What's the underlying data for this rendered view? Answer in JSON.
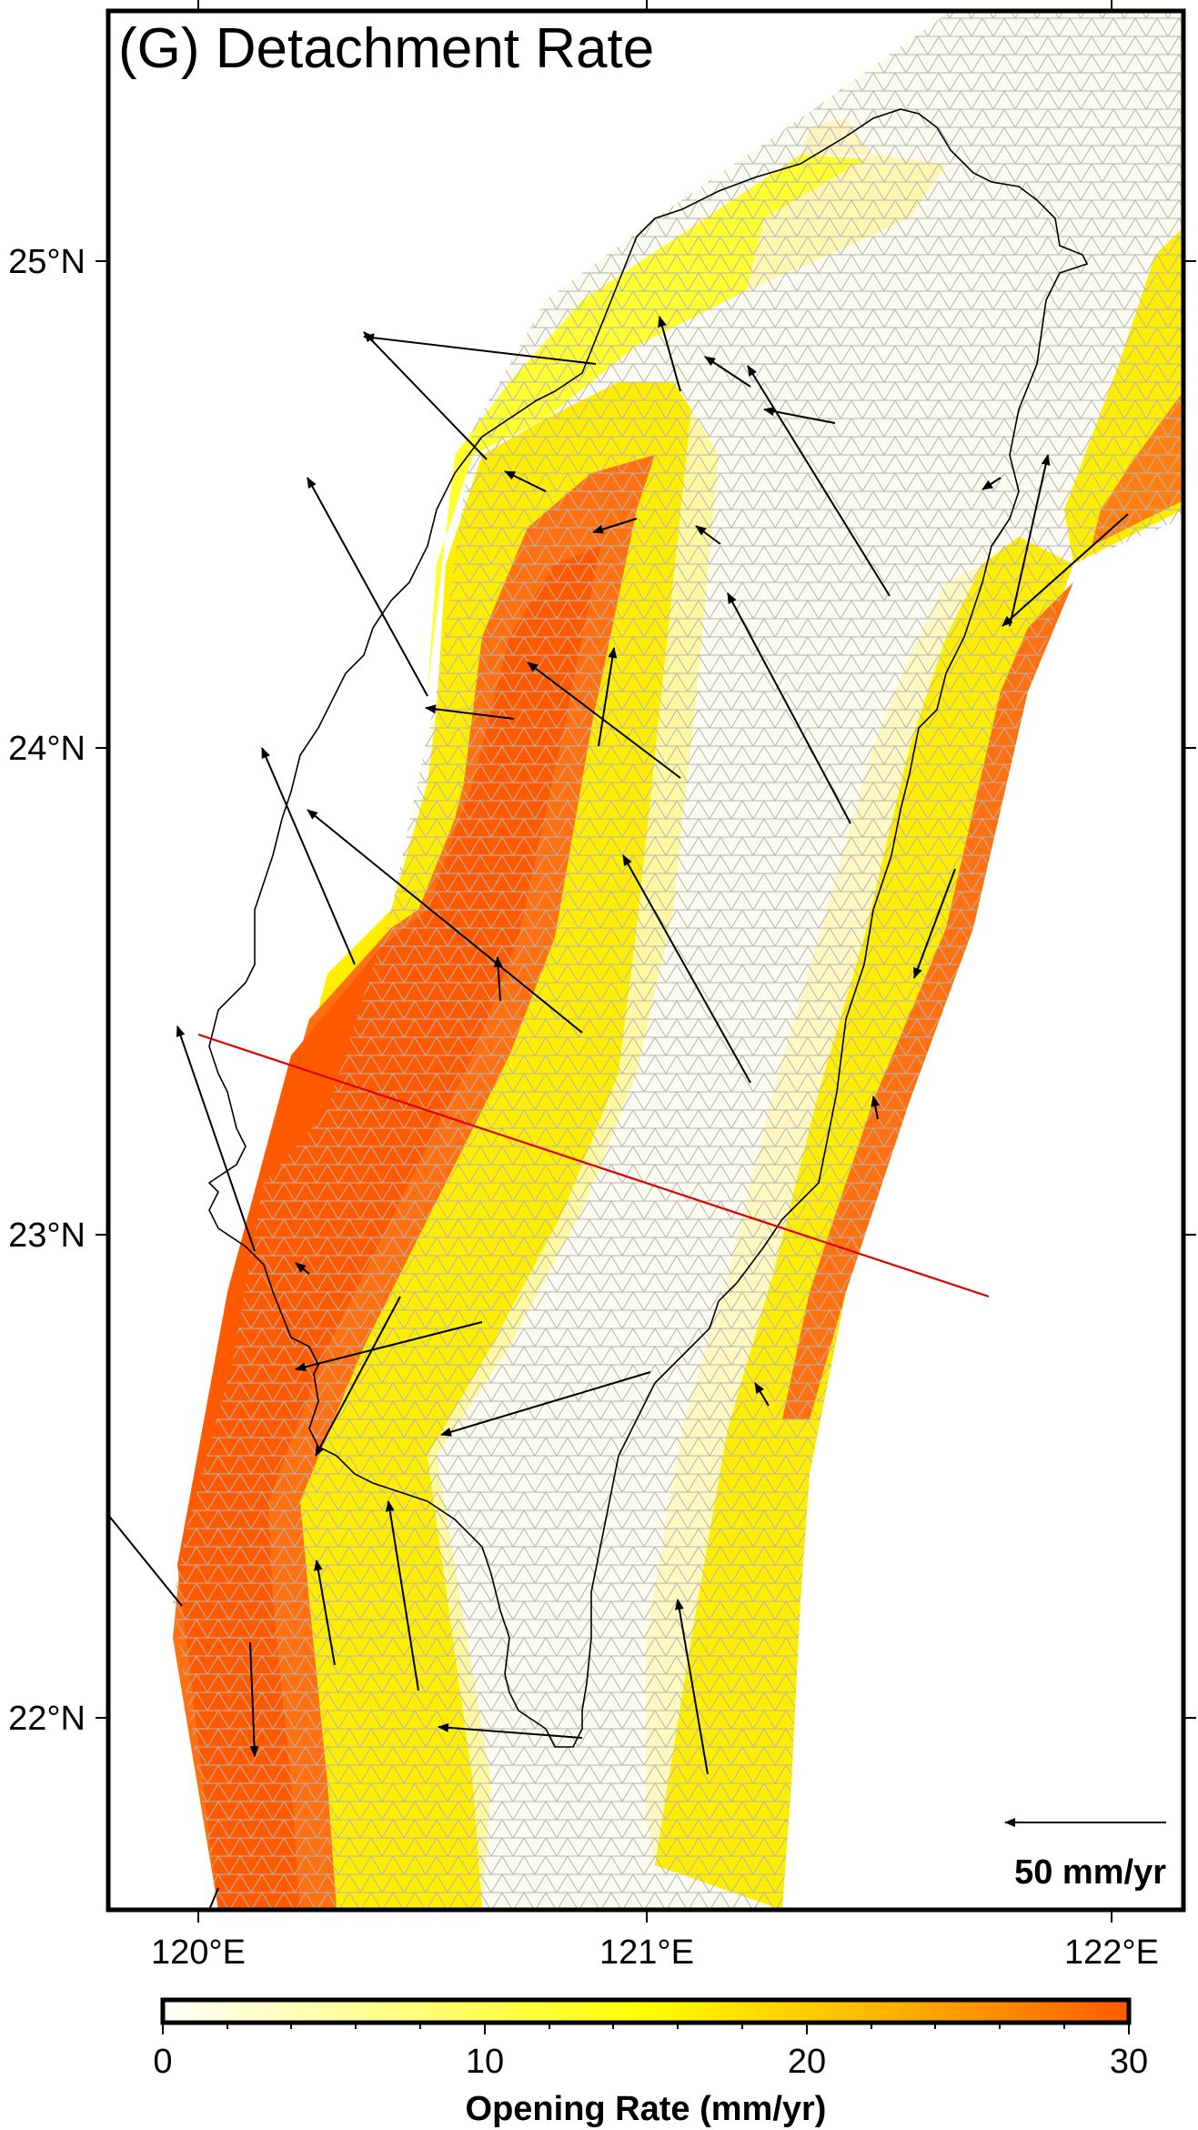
{
  "title": "(G) Detachment Rate",
  "axes": {
    "x_ticks": [
      "120°E",
      "121°E",
      "122°E"
    ],
    "y_ticks": [
      "25°N",
      "24°N",
      "23°N",
      "22°N"
    ]
  },
  "scale_vector": {
    "label": "50 mm/yr",
    "value_mm_per_yr": 50
  },
  "colorbar": {
    "title": "Opening Rate (mm/yr)",
    "ticks": [
      "0",
      "10",
      "20",
      "30"
    ],
    "min": 0,
    "max": 30,
    "colors": [
      "#ffffff",
      "#ffff00",
      "#ff5a00"
    ]
  },
  "colors": {
    "mesh_line": "#b4b4b4",
    "profile_line": "#e00000",
    "coastline": "#000000",
    "vectors": "#000000"
  }
}
